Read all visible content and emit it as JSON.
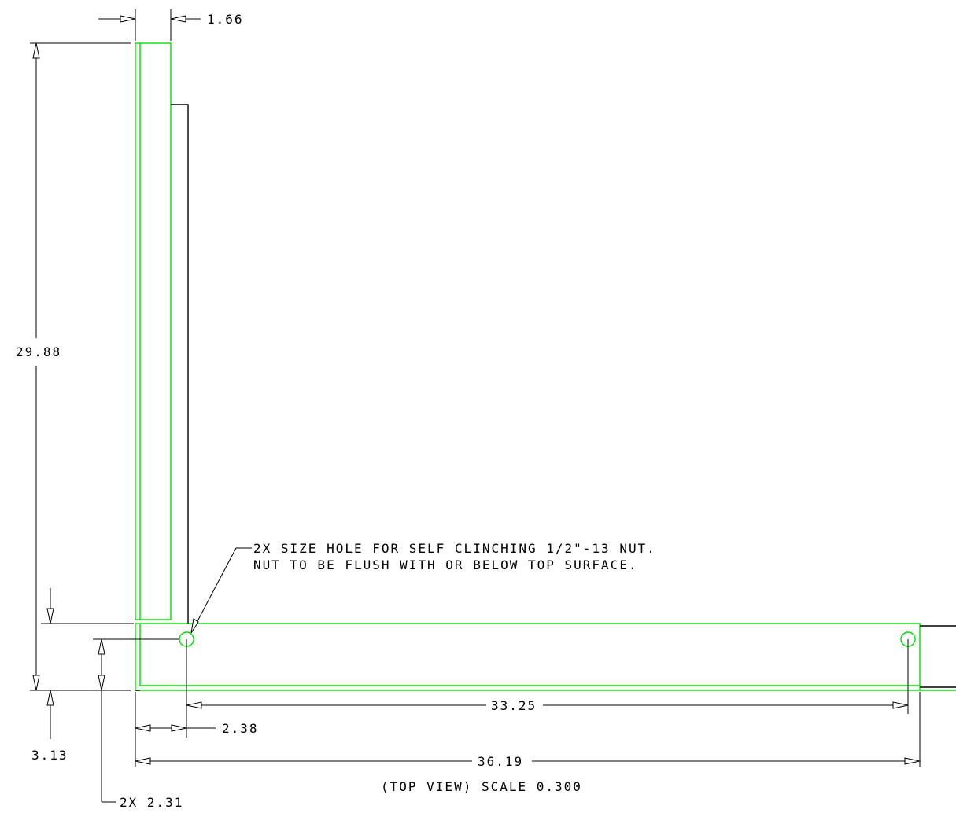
{
  "drawing": {
    "dimensions": {
      "flange_thickness": "1.66",
      "overall_height": "29.88",
      "bottom_offset": "3.13",
      "hole_spacing": "33.25",
      "hole_edge_offset": "2.38",
      "overall_width": "36.19",
      "hole_height": "2X 2.31"
    },
    "note_line1": "2X SIZE HOLE FOR SELF CLINCHING 1/2\"-13 NUT.",
    "note_line2": "NUT TO BE FLUSH WITH OR BELOW TOP SURFACE.",
    "view_label": "(TOP VIEW) SCALE  0.300",
    "colors": {
      "part_outline": "#00e000",
      "dimension_lines": "#000000"
    }
  }
}
